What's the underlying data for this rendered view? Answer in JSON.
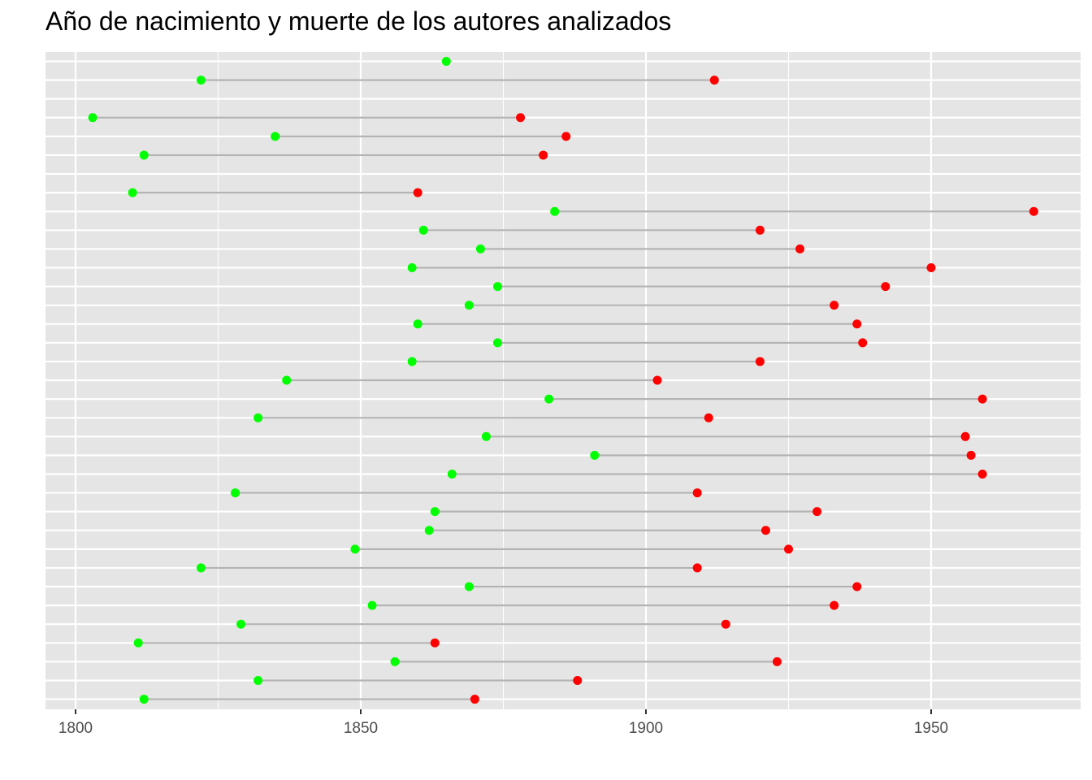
{
  "chart_data": {
    "type": "dumbbell",
    "title": "Año de nacimiento y muerte de los autores analizados",
    "xlabel": "",
    "ylabel": "",
    "xlim": [
      1795,
      1972
    ],
    "x_ticks": [
      1800,
      1850,
      1900,
      1950
    ],
    "grid": true,
    "legend": "none",
    "colors": {
      "panel": "#e5e5e5",
      "grid": "#ffffff",
      "segment": "#b3b3b3",
      "birth": "#00ff00",
      "death": "#ff0000"
    },
    "rows": [
      {
        "birth": 1865,
        "death": null
      },
      {
        "birth": 1822,
        "death": 1912
      },
      {
        "birth": null,
        "death": null
      },
      {
        "birth": 1803,
        "death": 1878
      },
      {
        "birth": 1835,
        "death": 1886
      },
      {
        "birth": 1812,
        "death": 1882
      },
      {
        "birth": null,
        "death": null
      },
      {
        "birth": 1810,
        "death": 1860
      },
      {
        "birth": 1884,
        "death": 1968
      },
      {
        "birth": 1861,
        "death": 1920
      },
      {
        "birth": 1871,
        "death": 1927
      },
      {
        "birth": 1859,
        "death": 1950
      },
      {
        "birth": 1874,
        "death": 1942
      },
      {
        "birth": 1869,
        "death": 1933
      },
      {
        "birth": 1860,
        "death": 1937
      },
      {
        "birth": 1874,
        "death": 1938
      },
      {
        "birth": 1859,
        "death": 1920
      },
      {
        "birth": 1837,
        "death": 1902
      },
      {
        "birth": 1883,
        "death": 1959
      },
      {
        "birth": 1832,
        "death": 1911
      },
      {
        "birth": 1872,
        "death": 1956
      },
      {
        "birth": 1891,
        "death": 1957
      },
      {
        "birth": 1866,
        "death": 1959
      },
      {
        "birth": 1828,
        "death": 1909
      },
      {
        "birth": 1863,
        "death": 1930
      },
      {
        "birth": 1862,
        "death": 1921
      },
      {
        "birth": 1849,
        "death": 1925
      },
      {
        "birth": 1822,
        "death": 1909
      },
      {
        "birth": 1869,
        "death": 1937
      },
      {
        "birth": 1852,
        "death": 1933
      },
      {
        "birth": 1829,
        "death": 1914
      },
      {
        "birth": 1811,
        "death": 1863
      },
      {
        "birth": 1856,
        "death": 1923
      },
      {
        "birth": 1832,
        "death": 1888
      },
      {
        "birth": 1812,
        "death": 1870
      }
    ]
  }
}
